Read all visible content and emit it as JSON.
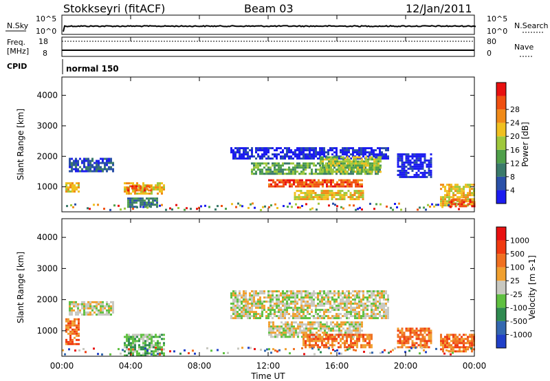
{
  "header": {
    "station": "Stokkseyri (fitACF)",
    "beam": "Beam 03",
    "date": "12/Jan/2011"
  },
  "status_panels": {
    "nsky": {
      "left_label": "N.Sky",
      "left_ticks": [
        "10^5",
        "10^0"
      ],
      "right_label": "N.Search",
      "right_ticks": [
        "10^5",
        "10^0"
      ]
    },
    "freq": {
      "left_label_line1": "Freq.",
      "left_label_line2": "[MHz]",
      "left_ticks": [
        "18",
        "8"
      ],
      "right_label": "Nave",
      "right_ticks": [
        "80",
        "0"
      ]
    },
    "cpid": {
      "label": "CPID",
      "value": "normal 150"
    }
  },
  "chart_data": [
    {
      "type": "heatmap",
      "name": "power",
      "ylabel": "Slant Range [km]",
      "yticks": [
        "1000",
        "2000",
        "3000",
        "4000"
      ],
      "ylim": [
        180,
        4600
      ],
      "xlim_hours": [
        0,
        24
      ],
      "colorbar": {
        "label": "Power [dB]",
        "ticks": [
          "4",
          "8",
          "12",
          "16",
          "20",
          "24",
          "28"
        ],
        "colors": [
          "#1c1cf0",
          "#2a50a8",
          "#3a7a6a",
          "#4fa04a",
          "#9fc83c",
          "#f0c020",
          "#f08a18",
          "#f05010",
          "#e81010"
        ]
      },
      "regions": [
        {
          "t": [
            0.4,
            3.0
          ],
          "r": [
            1500,
            1950
          ],
          "level": 1
        },
        {
          "t": [
            0.2,
            1.0
          ],
          "r": [
            850,
            1150
          ],
          "level": 5
        },
        {
          "t": [
            3.6,
            6.0
          ],
          "r": [
            800,
            1150
          ],
          "level": 5
        },
        {
          "t": [
            3.8,
            5.2
          ],
          "r": [
            900,
            1050
          ],
          "level": 7
        },
        {
          "t": [
            3.8,
            5.6
          ],
          "r": [
            350,
            650
          ],
          "level": 2
        },
        {
          "t": [
            9.8,
            19.0
          ],
          "r": [
            1900,
            2300
          ],
          "level": 0
        },
        {
          "t": [
            11.0,
            18.5
          ],
          "r": [
            1400,
            1800
          ],
          "level": 3
        },
        {
          "t": [
            12.0,
            17.5
          ],
          "r": [
            1000,
            1250
          ],
          "level": 7
        },
        {
          "t": [
            13.5,
            17.5
          ],
          "r": [
            600,
            900
          ],
          "level": 5
        },
        {
          "t": [
            15.0,
            18.5
          ],
          "r": [
            1500,
            2000
          ],
          "level": 4
        },
        {
          "t": [
            19.5,
            21.5
          ],
          "r": [
            1300,
            2100
          ],
          "level": 0
        },
        {
          "t": [
            22.0,
            24.0
          ],
          "r": [
            400,
            1100
          ],
          "level": 5
        },
        {
          "t": [
            22.5,
            24.0
          ],
          "r": [
            350,
            600
          ],
          "level": 7
        }
      ]
    },
    {
      "type": "heatmap",
      "name": "velocity",
      "ylabel": "Slant Range [km]",
      "yticks": [
        "1000",
        "2000",
        "3000",
        "4000"
      ],
      "ylim": [
        180,
        4600
      ],
      "xlim_hours": [
        0,
        24
      ],
      "colorbar": {
        "label": "Velocity [m s-1]",
        "ticks": [
          "1000",
          "500",
          "100",
          "25",
          "-25",
          "-100",
          "-500",
          "-1000"
        ],
        "colors": [
          "#2040c8",
          "#3468b0",
          "#2f8a50",
          "#5fc040",
          "#c8c8c0",
          "#f0a030",
          "#f07020",
          "#f03a10",
          "#e81010"
        ]
      },
      "regions": [
        {
          "t": [
            0.4,
            3.0
          ],
          "r": [
            1500,
            1950
          ],
          "color": 4
        },
        {
          "t": [
            0.2,
            1.0
          ],
          "r": [
            600,
            1400
          ],
          "color": 6
        },
        {
          "t": [
            3.6,
            6.0
          ],
          "r": [
            200,
            900
          ],
          "color": 3
        },
        {
          "t": [
            9.8,
            19.0
          ],
          "r": [
            1400,
            2300
          ],
          "color": 4
        },
        {
          "t": [
            12.0,
            17.5
          ],
          "r": [
            800,
            1300
          ],
          "color": 4
        },
        {
          "t": [
            14.0,
            18.0
          ],
          "r": [
            500,
            900
          ],
          "color": 6
        },
        {
          "t": [
            19.5,
            21.5
          ],
          "r": [
            500,
            1100
          ],
          "color": 6
        },
        {
          "t": [
            22.0,
            24.0
          ],
          "r": [
            350,
            900
          ],
          "color": 6
        }
      ]
    }
  ],
  "time_axis": {
    "ticks": [
      "00:00",
      "04:00",
      "08:00",
      "12:00",
      "16:00",
      "20:00",
      "00:00"
    ],
    "label": "Time UT"
  }
}
